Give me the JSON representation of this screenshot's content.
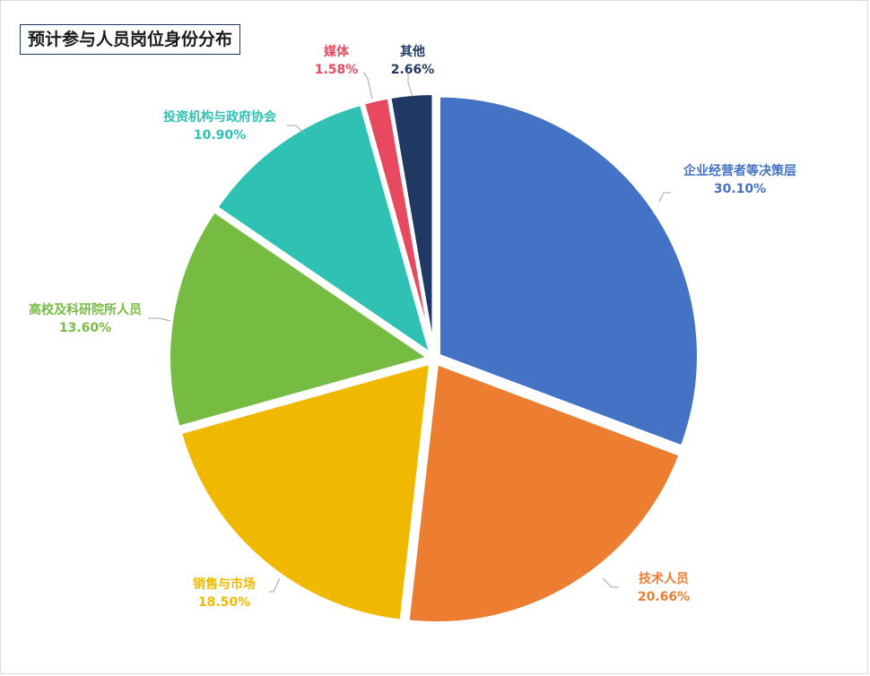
{
  "chart_data": {
    "type": "pie",
    "title": "预计参与人员岗位身份分布",
    "slices": [
      {
        "name": "企业经营者等决策层",
        "value": 30.1,
        "label": "30.10%",
        "color": "#4472c4"
      },
      {
        "name": "技术人员",
        "value": 20.66,
        "label": "20.66%",
        "color": "#ed7d31"
      },
      {
        "name": "销售与市场",
        "value": 18.5,
        "label": "18.50%",
        "color": "#f0b900"
      },
      {
        "name": "高校及科研院所人员",
        "value": 13.6,
        "label": "13.60%",
        "color": "#76bc42"
      },
      {
        "name": "投资机构与政府协会",
        "value": 10.9,
        "label": "10.90%",
        "color": "#2ec1b4"
      },
      {
        "name": "媒体",
        "value": 1.58,
        "label": "1.58%",
        "color": "#e8495f"
      },
      {
        "name": "其他",
        "value": 2.66,
        "label": "2.66%",
        "color": "#203864"
      }
    ]
  }
}
